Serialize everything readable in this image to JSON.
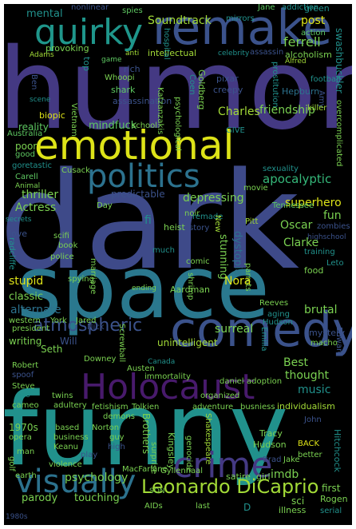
{
  "colors": {
    "background": "#000000",
    "frame": "#ffffff",
    "yellow": "#dde318",
    "lime": "#a2da37",
    "green": "#5ec962",
    "teal": "#21918c",
    "tealdark": "#1f968b",
    "blue": "#3b528b",
    "indigo": "#443983",
    "purple": "#440154",
    "violet": "#482677",
    "navy": "#2c728e",
    "mint": "#35b779"
  },
  "words": {
    "humor": "humor",
    "dark": "dark",
    "funny": "funny",
    "space": "space",
    "emotional": "emotional",
    "comedy": "comedy",
    "remake": "remake",
    "quirky": "quirky",
    "holocaust": "Holocaust",
    "politics": "politics",
    "crime": "crime",
    "visually": "visually",
    "atmospheric": "atmospheric",
    "leonardo": "Leonardo DiCaprio",
    "soundtrack": "Soundtrack",
    "charles": "Charles",
    "friendship": "friendship",
    "apocalyptic": "apocalyptic",
    "reality": "reality",
    "mindfuck": "mindfuck",
    "mental": "mental",
    "nonlinear": "nonlinear",
    "spies": "spies",
    "jane": "Jane",
    "green_top": "green",
    "post": "post",
    "ferrell": "ferrell",
    "provoking": "provoking",
    "adams": "Adams",
    "anti": "anti",
    "intellectual": "intellectual",
    "celebrity": "celebrity",
    "assassin": "assassin",
    "alcoholism": "alcoholism",
    "addiction": "addiction",
    "mirrors": "mirrors",
    "action": "action",
    "hospital": "hospital",
    "swashbuckler": "swashbuckler",
    "alfred": "Alfred",
    "game": "game",
    "top": "top",
    "rich": "rich",
    "whoopi": "Whoopi",
    "shark": "shark",
    "ben": "Ben",
    "scene": "scene",
    "pixar": "pixar",
    "creepy": "creepy",
    "goldberg": "Goldberg",
    "coen": "Coen",
    "hepburn": "Hepburn",
    "prostitution": "prostitution",
    "football": "football",
    "amy": "Amy",
    "biopic": "biopic",
    "assassination": "assassination",
    "katzanzakis": "Katzanzakis",
    "psychological": "psychological",
    "killer": "killer",
    "vietnam": "Vietnam",
    "school": "school",
    "overcomplicated": "overcomplicated",
    "australia": "Australia",
    "poor": "poor",
    "good_lower": "good",
    "goretastic": "goretastic",
    "carell": "Carell",
    "give": "GIVE",
    "animal": "Animal",
    "cusack": "Cusack",
    "sexuality": "sexuality",
    "thriller": "thriller",
    "actress": "Actress",
    "superhero": "superhero",
    "predictable": "predictable",
    "depressing": "depressing",
    "secrets": "secrets",
    "movie": "movie",
    "day": "Day",
    "love": "love",
    "tennessee": "Tennessee",
    "fun": "fun",
    "zombies": "zombies",
    "scifi": "scifi",
    "book": "book",
    "fi": "fi",
    "heist": "heist",
    "noir": "noir",
    "remade": "remade",
    "story": "story",
    "new": "New",
    "pitt": "Pitt",
    "oscar": "Oscar",
    "highschool": "highschool",
    "radcliffe": "radcliffe",
    "police": "police",
    "stunning": "stunning",
    "dystopia": "dystopia",
    "clarke": "Clarke",
    "marriage": "marriage",
    "much": "much",
    "comic": "comic",
    "parrots": "parrots",
    "training": "training",
    "leto": "Leto",
    "stupid": "stupid",
    "spying": "spying",
    "shrimp": "shrimp",
    "food": "food",
    "nora": "Nora",
    "classic": "classic",
    "ending": "ending",
    "aardman": "Aardman",
    "alternate": "alternate",
    "western": "western",
    "york": "York",
    "jared": "Jared",
    "reeves": "Reeves",
    "aging": "aging",
    "brutal": "brutal",
    "president": "president",
    "nick": "Nick",
    "screwball": "Screwball",
    "hudson": "Hudson",
    "writing": "writing",
    "will": "Will",
    "surreal": "surreal",
    "mystery": "mystery",
    "edward": "Edward",
    "unintelligent": "unintelligent",
    "emilia": "Emilia",
    "downey": "Downey",
    "robert": "Robert",
    "austen": "Austen",
    "canada": "Canada",
    "macho": "macho",
    "seth": "Seth",
    "best": "Best",
    "spoof": "spoof",
    "immortality": "immortality",
    "daniel": "daniel",
    "adoption": "adoption",
    "thought": "thought",
    "steve": "Steve",
    "organized": "organized",
    "music": "music",
    "neo": "neo",
    "twins": "twins",
    "cameo": "cameo",
    "adultery": "adultery",
    "fetishism": "fetishism",
    "tolkien": "Tolkien",
    "adventure": "adventure",
    "busniess": "busniess",
    "individualism": "individualism",
    "demons": "demons",
    "shakespeare": "Shakespeare",
    "john": "John",
    "y1970s": "1970s",
    "opera": "opera",
    "based": "based",
    "business": "business",
    "brothers": "Brothers",
    "norton": "Norton",
    "guy": "guy",
    "tracy": "Tracy",
    "hitchcock": "Hitchcock",
    "man": "man",
    "keanu": "Keanu",
    "high": "high",
    "play": "play",
    "kingsley": "Kingsley",
    "genocide": "genocide",
    "back": "BACK",
    "better": "better",
    "golf": "golf",
    "violence": "violence",
    "surprise": "surprise",
    "brad": "Brad",
    "jake": "Jake",
    "earth": "earth",
    "psychology": "psychology",
    "imdb": "imdb",
    "macfarlane": "MacFarlane",
    "gyllenhaal": "Gyllenhaal",
    "satire": "satire",
    "girl": "girl",
    "first": "first",
    "rogen": "Rogen",
    "son": "SON",
    "parody": "parody",
    "touching": "touching",
    "aids": "AIDs",
    "last": "last",
    "sci": "sci",
    "illness": "illness",
    "serial": "serial",
    "y1980s": "1980s",
    "d": "D",
    "the": "the"
  }
}
